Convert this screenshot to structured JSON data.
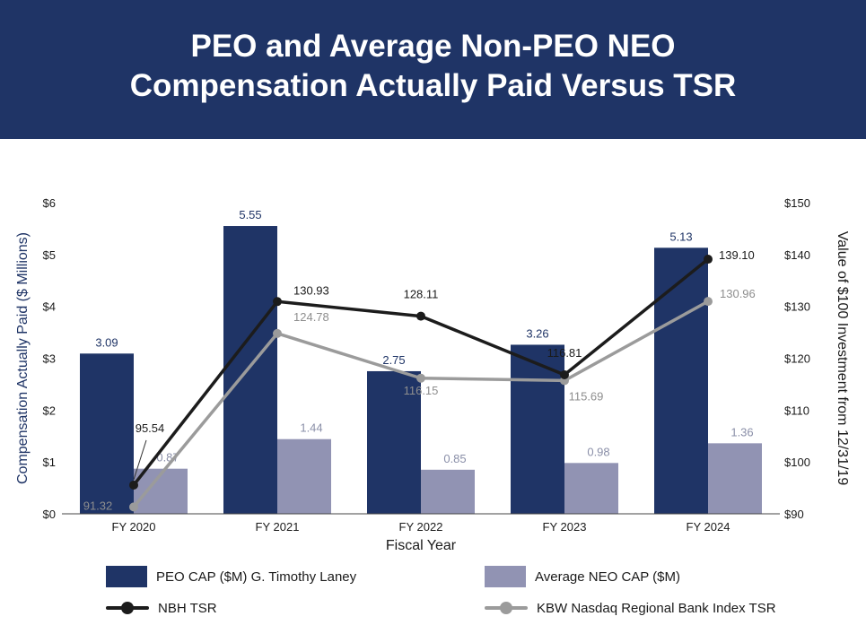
{
  "chart_data": {
    "type": "bar",
    "title": "PEO and Average Non-PEO NEO Compensation Actually Paid Versus TSR",
    "title_lines": [
      "PEO and Average Non-PEO NEO",
      "Compensation Actually Paid Versus TSR"
    ],
    "categories": [
      "FY 2020",
      "FY 2021",
      "FY 2022",
      "FY 2023",
      "FY 2024"
    ],
    "xlabel": "Fiscal Year",
    "ylabel": "Compensation Actually Paid ($ Millions)",
    "ylabel_right": "Value of $100 Investment from 12/31/19",
    "ylim": [
      0,
      6
    ],
    "ylim_right": [
      90,
      150
    ],
    "left_ticks": [
      "$0",
      "$1",
      "$2",
      "$3",
      "$4",
      "$5",
      "$6"
    ],
    "right_ticks": [
      "$90",
      "$100",
      "$110",
      "$120",
      "$130",
      "$140",
      "$150"
    ],
    "bar_series": [
      {
        "name": "PEO CAP ($M) G. Timothy Laney",
        "values": [
          3.09,
          5.55,
          2.75,
          3.26,
          5.13
        ],
        "labels": [
          "3.09",
          "5.55",
          "2.75",
          "3.26",
          "5.13"
        ],
        "color": "#1f3466",
        "label_color": "#1f3466"
      },
      {
        "name": "Average NEO CAP ($M)",
        "values": [
          0.87,
          1.44,
          0.85,
          0.98,
          1.36
        ],
        "labels": [
          "0.87",
          "1.44",
          "0.85",
          "0.98",
          "1.36"
        ],
        "color": "#9193b3",
        "label_color": "#8a8fa8"
      }
    ],
    "line_series": [
      {
        "name": "NBH TSR",
        "values": [
          95.54,
          130.93,
          128.11,
          116.81,
          139.1
        ],
        "labels": [
          "95.54",
          "130.93",
          "128.11",
          "116.81",
          "139.10"
        ],
        "color": "#1c1c1c",
        "label_color": "#1a1a1a"
      },
      {
        "name": "KBW Nasdaq Regional Bank Index TSR",
        "values": [
          91.32,
          124.78,
          116.15,
          115.69,
          130.96
        ],
        "labels": [
          "91.32",
          "124.78",
          "116.15",
          "115.69",
          "130.96"
        ],
        "color": "#9b9b9b",
        "label_color": "#8e8e8e"
      }
    ],
    "legend_position": "bottom",
    "grid": false
  }
}
